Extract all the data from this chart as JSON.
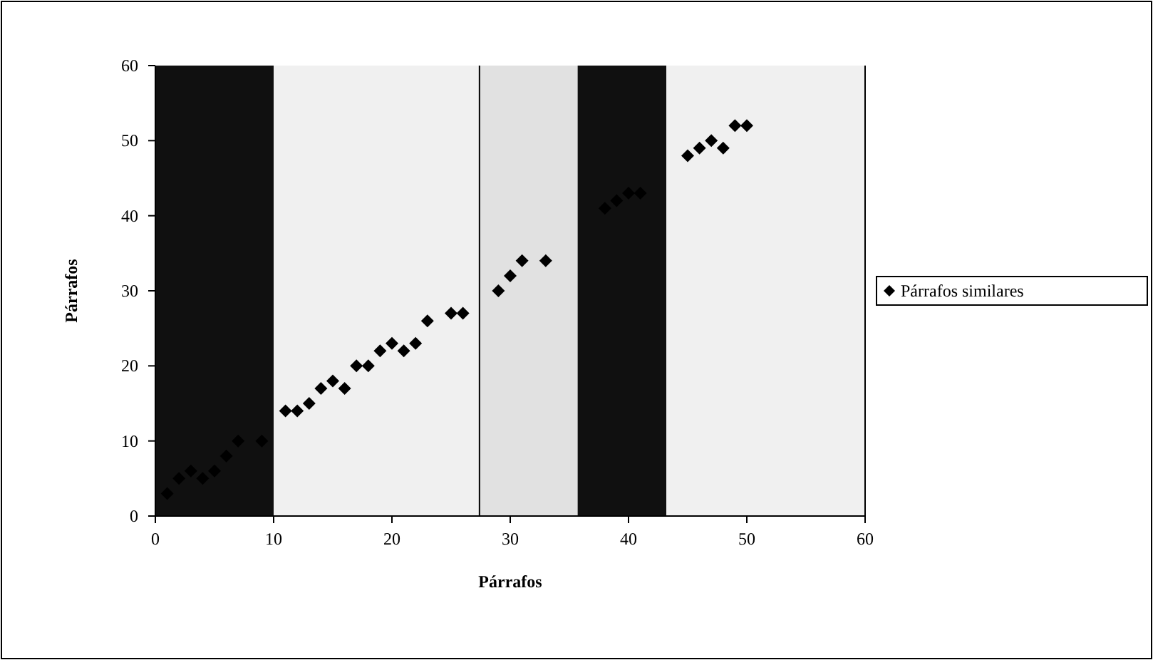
{
  "chart_data": {
    "type": "scatter",
    "xlabel": "Párrafos",
    "ylabel": "Párrafos",
    "x": [
      1,
      2,
      3,
      4,
      5,
      6,
      7,
      9,
      11,
      12,
      13,
      14,
      15,
      16,
      17,
      18,
      19,
      20,
      21,
      22,
      23,
      25,
      26,
      29,
      30,
      31,
      33,
      38,
      39,
      40,
      41,
      45,
      46,
      47,
      48,
      49,
      50
    ],
    "series": [
      {
        "name": "Párrafos similares",
        "color": "#000000",
        "values": [
          3,
          5,
          6,
          5,
          6,
          8,
          10,
          10,
          14,
          14,
          15,
          17,
          18,
          17,
          20,
          20,
          22,
          23,
          22,
          23,
          26,
          27,
          27,
          30,
          32,
          34,
          34,
          41,
          42,
          43,
          43,
          48,
          49,
          50,
          49,
          52,
          52
        ]
      }
    ],
    "xlim": [
      0,
      60
    ],
    "ylim": [
      0,
      60
    ],
    "xticks": [
      0,
      10,
      20,
      30,
      40,
      50,
      60
    ],
    "yticks": [
      0,
      10,
      20,
      30,
      40,
      50,
      60
    ],
    "marker": "diamond",
    "legend": "right",
    "grid": false,
    "bands": [
      {
        "axis": "x",
        "from": 0,
        "to": 10,
        "color": "#101010"
      },
      {
        "axis": "x",
        "from": 10,
        "to": 27.4,
        "color": "#f0f0f0"
      },
      {
        "axis": "x",
        "from": 27.4,
        "to": 35.7,
        "color": "#e1e1e1"
      },
      {
        "axis": "x",
        "from": 35.7,
        "to": 43.2,
        "color": "#101010"
      },
      {
        "axis": "x",
        "from": 43.2,
        "to": 60,
        "color": "#f0f0f0"
      }
    ],
    "ref_lines": [
      {
        "axis": "x",
        "value": 27.4,
        "color": "#000000"
      }
    ]
  }
}
